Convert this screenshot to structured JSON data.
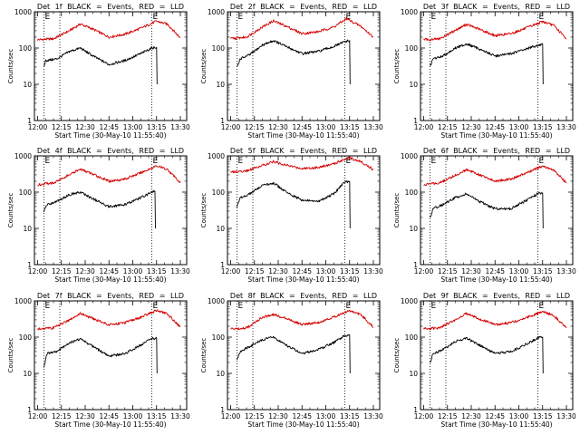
{
  "figure": {
    "xlabel": "Start Time (30-May-10 11:55:40)",
    "ylabel": "Counts/sec",
    "x_ticks": [
      "12:00",
      "12:15",
      "12:30",
      "12:45",
      "13:00",
      "13:15",
      "13:30"
    ],
    "y_ticks": [
      "1",
      "10",
      "100",
      "1000"
    ],
    "marker_label": "E",
    "colors": {
      "events": "#000000",
      "lld": "#d40000",
      "frame": "#000000",
      "marker": "#000000"
    }
  },
  "chart_data": [
    {
      "type": "line",
      "title": "Det 1f BLACK = Events, RED = LLD",
      "x_range": [
        "11:58",
        "13:34"
      ],
      "ylim": [
        1,
        1000
      ],
      "y_scale": "log",
      "markers": [
        "12:04",
        "12:14",
        "13:12"
      ],
      "series": [
        {
          "name": "LLD",
          "color": "#d40000",
          "points": [
            [
              "12:00",
              170
            ],
            [
              "12:10",
              180
            ],
            [
              "12:20",
              300
            ],
            [
              "12:27",
              460
            ],
            [
              "12:35",
              330
            ],
            [
              "12:45",
              200
            ],
            [
              "12:55",
              240
            ],
            [
              "13:05",
              350
            ],
            [
              "13:15",
              550
            ],
            [
              "13:22",
              450
            ],
            [
              "13:30",
              190
            ]
          ]
        },
        {
          "name": "Events",
          "color": "#000000",
          "points": [
            [
              "12:04",
              30
            ],
            [
              "12:05",
              45
            ],
            [
              "12:12",
              50
            ],
            [
              "12:20",
              80
            ],
            [
              "12:27",
              100
            ],
            [
              "12:35",
              60
            ],
            [
              "12:45",
              35
            ],
            [
              "12:55",
              45
            ],
            [
              "13:05",
              70
            ],
            [
              "13:12",
              100
            ],
            [
              "13:15",
              105
            ]
          ]
        }
      ]
    },
    {
      "type": "line",
      "title": "Det 2f BLACK = Events, RED = LLD",
      "x_range": [
        "11:58",
        "13:34"
      ],
      "ylim": [
        1,
        1000
      ],
      "y_scale": "log",
      "markers": [
        "12:04",
        "12:14",
        "13:12"
      ],
      "series": [
        {
          "name": "LLD",
          "color": "#d40000",
          "points": [
            [
              "12:00",
              180
            ],
            [
              "12:10",
              200
            ],
            [
              "12:20",
              380
            ],
            [
              "12:27",
              560
            ],
            [
              "12:35",
              400
            ],
            [
              "12:45",
              250
            ],
            [
              "12:55",
              280
            ],
            [
              "13:05",
              380
            ],
            [
              "13:13",
              640
            ],
            [
              "13:22",
              400
            ],
            [
              "13:30",
              200
            ]
          ]
        },
        {
          "name": "Events",
          "color": "#000000",
          "points": [
            [
              "12:04",
              30
            ],
            [
              "12:06",
              50
            ],
            [
              "12:12",
              65
            ],
            [
              "12:20",
              120
            ],
            [
              "12:27",
              160
            ],
            [
              "12:35",
              110
            ],
            [
              "12:45",
              70
            ],
            [
              "12:55",
              80
            ],
            [
              "13:05",
              110
            ],
            [
              "13:12",
              150
            ],
            [
              "13:15",
              160
            ]
          ]
        }
      ]
    },
    {
      "type": "line",
      "title": "Det 3f BLACK = Events, RED = LLD",
      "x_range": [
        "11:58",
        "13:34"
      ],
      "ylim": [
        1,
        1000
      ],
      "y_scale": "log",
      "markers": [
        "12:04",
        "12:14",
        "13:12"
      ],
      "series": [
        {
          "name": "LLD",
          "color": "#d40000",
          "points": [
            [
              "12:00",
              170
            ],
            [
              "12:10",
              180
            ],
            [
              "12:20",
              310
            ],
            [
              "12:27",
              450
            ],
            [
              "12:35",
              330
            ],
            [
              "12:45",
              220
            ],
            [
              "12:55",
              250
            ],
            [
              "13:05",
              360
            ],
            [
              "13:15",
              540
            ],
            [
              "13:22",
              420
            ],
            [
              "13:30",
              180
            ]
          ]
        },
        {
          "name": "Events",
          "color": "#000000",
          "points": [
            [
              "12:04",
              30
            ],
            [
              "12:06",
              50
            ],
            [
              "12:12",
              60
            ],
            [
              "12:20",
              100
            ],
            [
              "12:27",
              130
            ],
            [
              "12:35",
              95
            ],
            [
              "12:45",
              60
            ],
            [
              "12:55",
              70
            ],
            [
              "13:05",
              95
            ],
            [
              "13:12",
              120
            ],
            [
              "13:15",
              125
            ]
          ]
        }
      ]
    },
    {
      "type": "line",
      "title": "Det 4f BLACK = Events, RED = LLD",
      "x_range": [
        "11:58",
        "13:34"
      ],
      "ylim": [
        1,
        1000
      ],
      "y_scale": "log",
      "markers": [
        "12:04",
        "12:14",
        "13:12"
      ],
      "series": [
        {
          "name": "LLD",
          "color": "#d40000",
          "points": [
            [
              "12:00",
              160
            ],
            [
              "12:10",
              180
            ],
            [
              "12:20",
              300
            ],
            [
              "12:27",
              430
            ],
            [
              "12:35",
              310
            ],
            [
              "12:45",
              200
            ],
            [
              "12:55",
              230
            ],
            [
              "13:05",
              340
            ],
            [
              "13:15",
              530
            ],
            [
              "13:22",
              420
            ],
            [
              "13:30",
              180
            ]
          ]
        },
        {
          "name": "Events",
          "color": "#000000",
          "points": [
            [
              "12:04",
              30
            ],
            [
              "12:06",
              45
            ],
            [
              "12:12",
              55
            ],
            [
              "12:20",
              85
            ],
            [
              "12:27",
              100
            ],
            [
              "12:35",
              65
            ],
            [
              "12:45",
              40
            ],
            [
              "12:55",
              45
            ],
            [
              "13:05",
              70
            ],
            [
              "13:12",
              100
            ],
            [
              "13:14",
              105
            ]
          ]
        }
      ]
    },
    {
      "type": "line",
      "title": "Det 5f BLACK = Events, RED = LLD",
      "x_range": [
        "11:58",
        "13:34"
      ],
      "ylim": [
        1,
        1000
      ],
      "y_scale": "log",
      "markers": [
        "12:04",
        "12:14",
        "13:12"
      ],
      "series": [
        {
          "name": "LLD",
          "color": "#d40000",
          "points": [
            [
              "12:00",
              360
            ],
            [
              "12:10",
              380
            ],
            [
              "12:20",
              550
            ],
            [
              "12:27",
              700
            ],
            [
              "12:35",
              550
            ],
            [
              "12:45",
              450
            ],
            [
              "12:55",
              480
            ],
            [
              "13:05",
              600
            ],
            [
              "13:14",
              900
            ],
            [
              "13:22",
              700
            ],
            [
              "13:30",
              420
            ]
          ]
        },
        {
          "name": "Events",
          "color": "#000000",
          "points": [
            [
              "12:04",
              40
            ],
            [
              "12:06",
              70
            ],
            [
              "12:12",
              90
            ],
            [
              "12:20",
              150
            ],
            [
              "12:27",
              180
            ],
            [
              "12:35",
              100
            ],
            [
              "12:45",
              60
            ],
            [
              "12:55",
              55
            ],
            [
              "13:05",
              90
            ],
            [
              "13:12",
              190
            ],
            [
              "13:15",
              200
            ]
          ]
        }
      ]
    },
    {
      "type": "line",
      "title": "Det 6f BLACK = Events, RED = LLD",
      "x_range": [
        "11:58",
        "13:34"
      ],
      "ylim": [
        1,
        1000
      ],
      "y_scale": "log",
      "markers": [
        "12:04",
        "12:14",
        "13:12"
      ],
      "series": [
        {
          "name": "LLD",
          "color": "#d40000",
          "points": [
            [
              "12:00",
              160
            ],
            [
              "12:10",
              180
            ],
            [
              "12:20",
              290
            ],
            [
              "12:27",
              420
            ],
            [
              "12:35",
              300
            ],
            [
              "12:45",
              200
            ],
            [
              "12:55",
              230
            ],
            [
              "13:05",
              340
            ],
            [
              "13:15",
              520
            ],
            [
              "13:22",
              400
            ],
            [
              "13:30",
              180
            ]
          ]
        },
        {
          "name": "Events",
          "color": "#000000",
          "points": [
            [
              "12:04",
              20
            ],
            [
              "12:06",
              35
            ],
            [
              "12:12",
              45
            ],
            [
              "12:20",
              70
            ],
            [
              "12:27",
              90
            ],
            [
              "12:35",
              55
            ],
            [
              "12:45",
              35
            ],
            [
              "12:55",
              35
            ],
            [
              "13:05",
              60
            ],
            [
              "13:12",
              90
            ],
            [
              "13:15",
              95
            ]
          ]
        }
      ]
    },
    {
      "type": "line",
      "title": "Det 7f BLACK = Events, RED = LLD",
      "x_range": [
        "11:58",
        "13:34"
      ],
      "ylim": [
        1,
        1000
      ],
      "y_scale": "log",
      "markers": [
        "12:04",
        "12:14",
        "13:12"
      ],
      "series": [
        {
          "name": "LLD",
          "color": "#d40000",
          "points": [
            [
              "12:00",
              170
            ],
            [
              "12:10",
              180
            ],
            [
              "12:20",
              300
            ],
            [
              "12:27",
              450
            ],
            [
              "12:35",
              320
            ],
            [
              "12:45",
              220
            ],
            [
              "12:55",
              250
            ],
            [
              "13:05",
              350
            ],
            [
              "13:15",
              550
            ],
            [
              "13:22",
              430
            ],
            [
              "13:30",
              190
            ]
          ]
        },
        {
          "name": "Events",
          "color": "#000000",
          "points": [
            [
              "12:04",
              15
            ],
            [
              "12:06",
              35
            ],
            [
              "12:12",
              40
            ],
            [
              "12:20",
              70
            ],
            [
              "12:27",
              90
            ],
            [
              "12:35",
              55
            ],
            [
              "12:45",
              30
            ],
            [
              "12:55",
              35
            ],
            [
              "13:05",
              60
            ],
            [
              "13:12",
              90
            ],
            [
              "13:15",
              95
            ]
          ]
        }
      ]
    },
    {
      "type": "line",
      "title": "Det 8f BLACK = Events, RED = LLD",
      "x_range": [
        "11:58",
        "13:34"
      ],
      "ylim": [
        1,
        1000
      ],
      "y_scale": "log",
      "markers": [
        "12:04",
        "12:14",
        "13:12"
      ],
      "series": [
        {
          "name": "LLD",
          "color": "#d40000",
          "points": [
            [
              "12:00",
              170
            ],
            [
              "12:10",
              180
            ],
            [
              "12:15",
              250
            ],
            [
              "12:20",
              350
            ],
            [
              "12:27",
              420
            ],
            [
              "12:35",
              330
            ],
            [
              "12:45",
              220
            ],
            [
              "12:55",
              250
            ],
            [
              "13:05",
              360
            ],
            [
              "13:15",
              540
            ],
            [
              "13:22",
              420
            ],
            [
              "13:30",
              190
            ]
          ]
        },
        {
          "name": "Events",
          "color": "#000000",
          "points": [
            [
              "12:04",
              25
            ],
            [
              "12:06",
              40
            ],
            [
              "12:12",
              55
            ],
            [
              "12:20",
              85
            ],
            [
              "12:27",
              100
            ],
            [
              "12:35",
              60
            ],
            [
              "12:45",
              35
            ],
            [
              "12:55",
              45
            ],
            [
              "13:05",
              70
            ],
            [
              "13:12",
              110
            ],
            [
              "13:15",
              115
            ]
          ]
        }
      ]
    },
    {
      "type": "line",
      "title": "Det 9f BLACK = Events, RED = LLD",
      "x_range": [
        "11:58",
        "13:34"
      ],
      "ylim": [
        1,
        1000
      ],
      "y_scale": "log",
      "markers": [
        "12:04",
        "12:14",
        "13:12"
      ],
      "series": [
        {
          "name": "LLD",
          "color": "#d40000",
          "points": [
            [
              "12:00",
              170
            ],
            [
              "12:10",
              180
            ],
            [
              "12:20",
              300
            ],
            [
              "12:27",
              450
            ],
            [
              "12:35",
              320
            ],
            [
              "12:45",
              220
            ],
            [
              "12:55",
              250
            ],
            [
              "13:05",
              350
            ],
            [
              "13:15",
              500
            ],
            [
              "13:22",
              400
            ],
            [
              "13:30",
              180
            ]
          ]
        },
        {
          "name": "Events",
          "color": "#000000",
          "points": [
            [
              "12:04",
              20
            ],
            [
              "12:06",
              35
            ],
            [
              "12:12",
              45
            ],
            [
              "12:20",
              75
            ],
            [
              "12:27",
              95
            ],
            [
              "12:35",
              60
            ],
            [
              "12:45",
              35
            ],
            [
              "12:55",
              40
            ],
            [
              "13:05",
              65
            ],
            [
              "13:12",
              95
            ],
            [
              "13:15",
              100
            ]
          ]
        }
      ]
    }
  ]
}
